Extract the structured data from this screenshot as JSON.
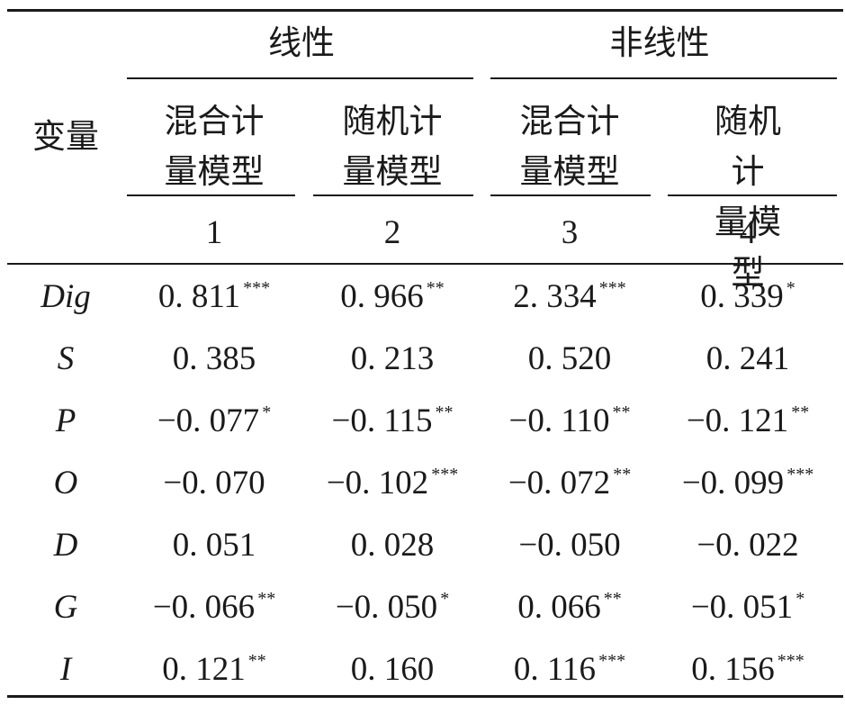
{
  "table": {
    "var_header": "变量",
    "groups": [
      "线性",
      "非线性"
    ],
    "models": [
      "混合计\n量模型",
      "随机计\n量模型",
      "混合计\n量模型",
      "随机计\n量模型"
    ],
    "col_numbers": [
      "1",
      "2",
      "3",
      "4"
    ],
    "rows": [
      {
        "var": "Dig",
        "cells": [
          {
            "v": "0. 811",
            "s": "***"
          },
          {
            "v": "0. 966",
            "s": "**"
          },
          {
            "v": "2. 334",
            "s": "***"
          },
          {
            "v": "0. 339",
            "s": "*"
          }
        ]
      },
      {
        "var": "S",
        "cells": [
          {
            "v": "0. 385",
            "s": ""
          },
          {
            "v": "0. 213",
            "s": ""
          },
          {
            "v": "0. 520",
            "s": ""
          },
          {
            "v": "0. 241",
            "s": ""
          }
        ]
      },
      {
        "var": "P",
        "cells": [
          {
            "v": "−0. 077",
            "s": "*"
          },
          {
            "v": "−0. 115",
            "s": "**"
          },
          {
            "v": "−0. 110",
            "s": "**"
          },
          {
            "v": "−0. 121",
            "s": "**"
          }
        ]
      },
      {
        "var": "O",
        "cells": [
          {
            "v": "−0. 070",
            "s": ""
          },
          {
            "v": "−0. 102",
            "s": "***"
          },
          {
            "v": "−0. 072",
            "s": "**"
          },
          {
            "v": "−0. 099",
            "s": "***"
          }
        ]
      },
      {
        "var": "D",
        "cells": [
          {
            "v": "0. 051",
            "s": ""
          },
          {
            "v": "0. 028",
            "s": ""
          },
          {
            "v": "−0. 050",
            "s": ""
          },
          {
            "v": "−0. 022",
            "s": ""
          }
        ]
      },
      {
        "var": "G",
        "cells": [
          {
            "v": "−0. 066",
            "s": "**"
          },
          {
            "v": "−0. 050",
            "s": "*"
          },
          {
            "v": "0. 066",
            "s": "**"
          },
          {
            "v": "−0. 051",
            "s": "*"
          }
        ]
      },
      {
        "var": "I",
        "cells": [
          {
            "v": "0. 121",
            "s": "**"
          },
          {
            "v": "0. 160",
            "s": ""
          },
          {
            "v": "0. 116",
            "s": "***"
          },
          {
            "v": "0. 156",
            "s": "***"
          }
        ]
      }
    ]
  }
}
